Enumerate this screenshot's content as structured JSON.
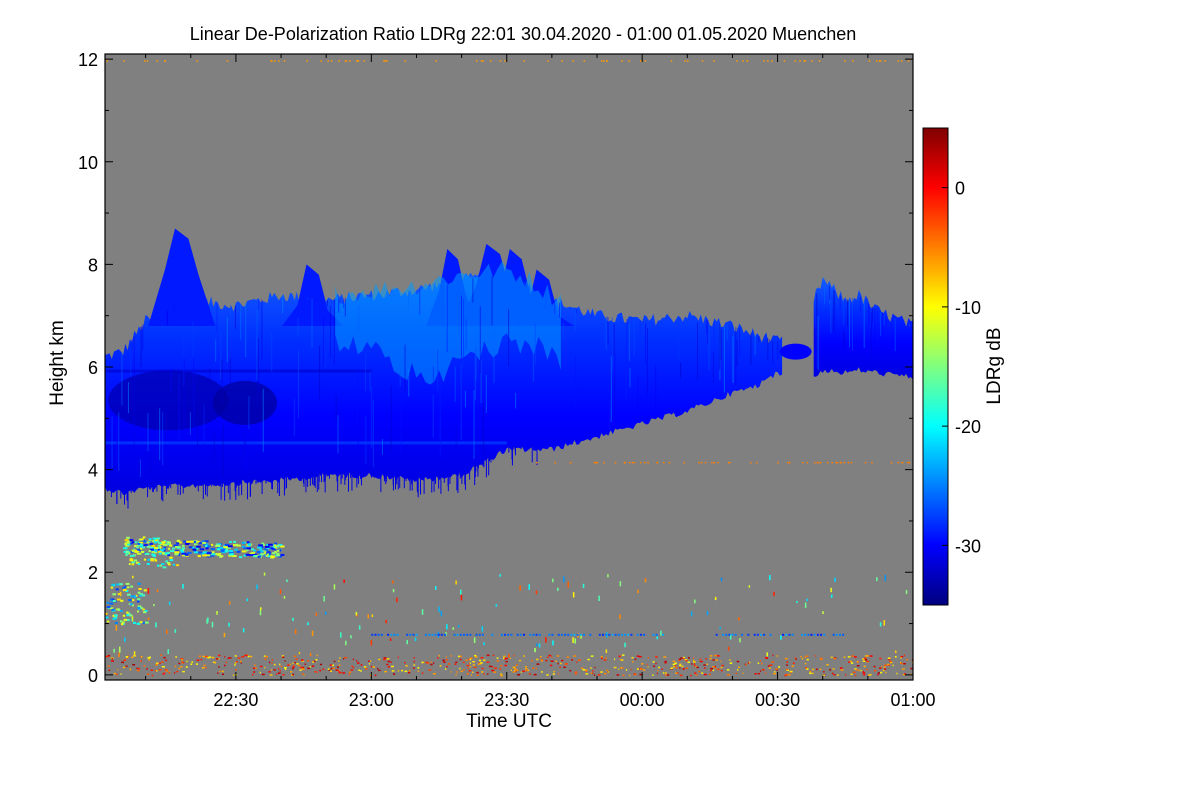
{
  "chart_data": {
    "type": "heatmap",
    "title": "Linear De-Polarization Ratio LDRg   22:01 30.04.2020 - 01:00 01.05.2020 Muenchen",
    "xlabel": "Time UTC",
    "ylabel": "Height km",
    "colorbar_label": "LDRg dB",
    "x_range_minutes": [
      -119,
      60
    ],
    "x_ticks": [
      {
        "minutes": -90,
        "label": "22:30"
      },
      {
        "minutes": -60,
        "label": "23:00"
      },
      {
        "minutes": -30,
        "label": "23:30"
      },
      {
        "minutes": 0,
        "label": "00:00"
      },
      {
        "minutes": 30,
        "label": "00:30"
      },
      {
        "minutes": 60,
        "label": "01:00"
      }
    ],
    "y_range_km": [
      -0.1,
      12.1
    ],
    "y_ticks": [
      0,
      2,
      4,
      6,
      8,
      10,
      12
    ],
    "color_range_db": [
      -35,
      5
    ],
    "colorbar_ticks": [
      {
        "value": 0,
        "label": "0"
      },
      {
        "value": -10,
        "label": "-10"
      },
      {
        "value": -20,
        "label": "-20"
      },
      {
        "value": -30,
        "label": "-30"
      }
    ],
    "background_color": "#808080",
    "colormap": [
      "#00007f",
      "#0000ff",
      "#007fff",
      "#00ffff",
      "#7fff7f",
      "#ffff00",
      "#ff7f00",
      "#ff0000",
      "#7f0000"
    ],
    "cloud_layer": {
      "description_ldr": "main ice cloud layer",
      "time_minutes": [
        -119,
        -115,
        -110,
        -100,
        -90,
        -80,
        -70,
        -60,
        -50,
        -40,
        -30,
        -25,
        -20,
        -10,
        0,
        10,
        20,
        26,
        27,
        29,
        32,
        35,
        38,
        40,
        45,
        48,
        52,
        60
      ],
      "base_km": [
        3.7,
        3.6,
        3.7,
        3.75,
        3.8,
        3.85,
        3.95,
        3.95,
        3.85,
        3.95,
        4.45,
        4.45,
        4.45,
        4.7,
        4.95,
        5.2,
        5.55,
        5.7,
        5.85,
        5.9,
        5.95,
        5.85,
        5.85,
        6.0,
        5.95,
        6.0,
        5.95,
        5.85
      ],
      "top_km": [
        6.2,
        6.3,
        6.9,
        7.3,
        7.2,
        7.4,
        7.3,
        7.4,
        7.5,
        7.7,
        7.8,
        7.6,
        7.3,
        7.0,
        6.9,
        7.0,
        6.8,
        6.6,
        6.6,
        6.5,
        6.5,
        6.55,
        7.3,
        7.7,
        7.3,
        7.4,
        7.1,
        6.8
      ],
      "gap_minutes": [
        [
          31,
          38
        ]
      ],
      "typical_ldr_db": -30,
      "core_ldr_db": -33,
      "upper_turret_ldr_db": -24
    },
    "turrets": [
      {
        "time_minutes": -102,
        "top_km": 8.7
      },
      {
        "time_minutes": -73,
        "top_km": 8.0
      },
      {
        "time_minutes": -42,
        "top_km": 8.3
      },
      {
        "time_minutes": -33,
        "top_km": 8.4
      },
      {
        "time_minutes": -28,
        "top_km": 8.3
      },
      {
        "time_minutes": -22,
        "top_km": 7.9
      }
    ],
    "low_layer": {
      "time_minutes": [
        -115,
        -80
      ],
      "height_km": [
        2.2,
        2.7
      ],
      "ldr_db_mixed": [
        -28,
        -20,
        -12
      ]
    },
    "near_ground_echo": {
      "time_minutes": [
        -119,
        60
      ],
      "height_km": [
        0.0,
        0.4
      ],
      "ldr_db": -5
    },
    "thin_line_0_8km": {
      "time_minutes": [
        -60,
        45
      ],
      "height_km": 0.8,
      "ldr_db": -26
    }
  }
}
